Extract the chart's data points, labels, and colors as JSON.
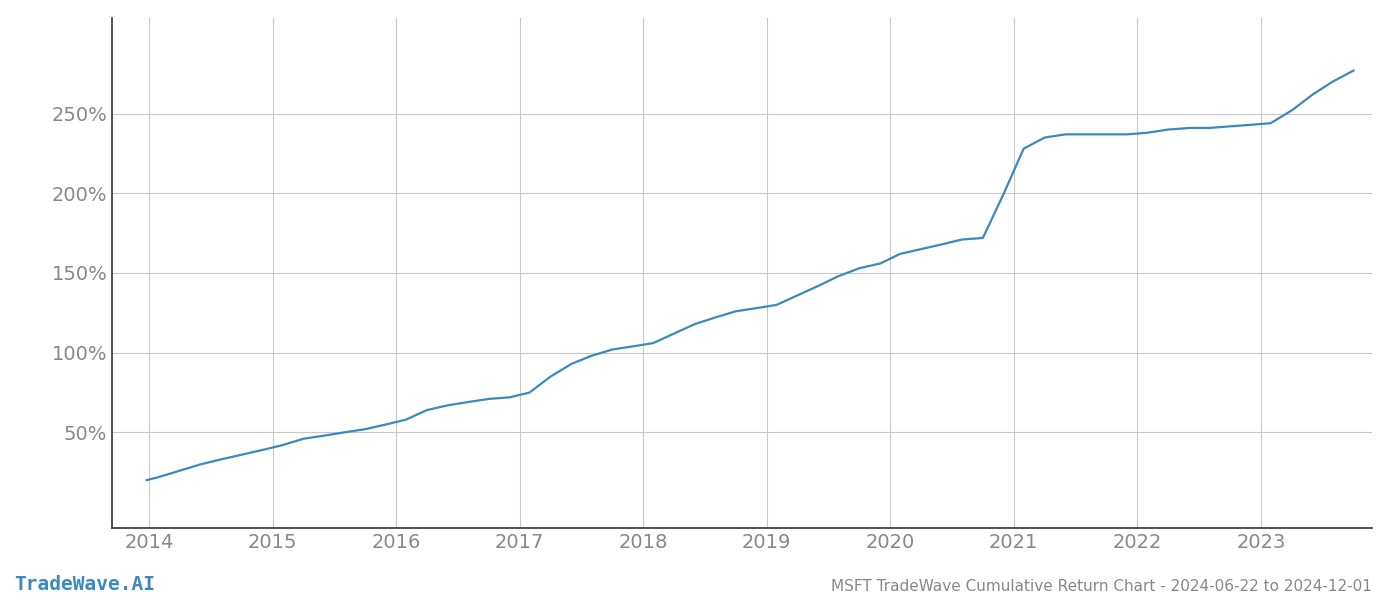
{
  "title": "MSFT TradeWave Cumulative Return Chart - 2024-06-22 to 2024-12-01",
  "watermark": "TradeWave.AI",
  "line_color": "#3a8abf",
  "background_color": "#ffffff",
  "grid_color": "#c8c8c8",
  "years": [
    2014,
    2015,
    2016,
    2017,
    2018,
    2019,
    2020,
    2021,
    2022,
    2023
  ],
  "x_values": [
    2013.98,
    2014.08,
    2014.25,
    2014.42,
    2014.58,
    2014.75,
    2014.92,
    2015.08,
    2015.25,
    2015.42,
    2015.58,
    2015.75,
    2015.92,
    2016.08,
    2016.25,
    2016.42,
    2016.58,
    2016.75,
    2016.92,
    2017.08,
    2017.25,
    2017.42,
    2017.58,
    2017.75,
    2017.92,
    2018.08,
    2018.25,
    2018.42,
    2018.58,
    2018.75,
    2018.92,
    2019.08,
    2019.25,
    2019.42,
    2019.58,
    2019.75,
    2019.92,
    2020.08,
    2020.25,
    2020.42,
    2020.58,
    2020.75,
    2020.92,
    2021.08,
    2021.25,
    2021.42,
    2021.58,
    2021.75,
    2021.92,
    2022.08,
    2022.25,
    2022.42,
    2022.58,
    2022.75,
    2022.92,
    2023.08,
    2023.25,
    2023.42,
    2023.58,
    2023.75
  ],
  "y_values": [
    20,
    22,
    26,
    30,
    33,
    36,
    39,
    42,
    46,
    48,
    50,
    52,
    55,
    58,
    64,
    67,
    69,
    71,
    72,
    75,
    85,
    93,
    98,
    102,
    104,
    106,
    112,
    118,
    122,
    126,
    128,
    130,
    136,
    142,
    148,
    153,
    156,
    162,
    165,
    168,
    171,
    172,
    200,
    228,
    235,
    237,
    237,
    237,
    237,
    238,
    240,
    241,
    241,
    242,
    243,
    244,
    252,
    262,
    270,
    277
  ],
  "ylim": [
    -10,
    310
  ],
  "xlim": [
    2013.7,
    2023.9
  ],
  "yticks": [
    50,
    100,
    150,
    200,
    250
  ],
  "ytick_labels": [
    "50%",
    "100%",
    "150%",
    "200%",
    "250%"
  ],
  "title_fontsize": 11,
  "tick_fontsize": 14,
  "watermark_fontsize": 14,
  "line_width": 1.6
}
